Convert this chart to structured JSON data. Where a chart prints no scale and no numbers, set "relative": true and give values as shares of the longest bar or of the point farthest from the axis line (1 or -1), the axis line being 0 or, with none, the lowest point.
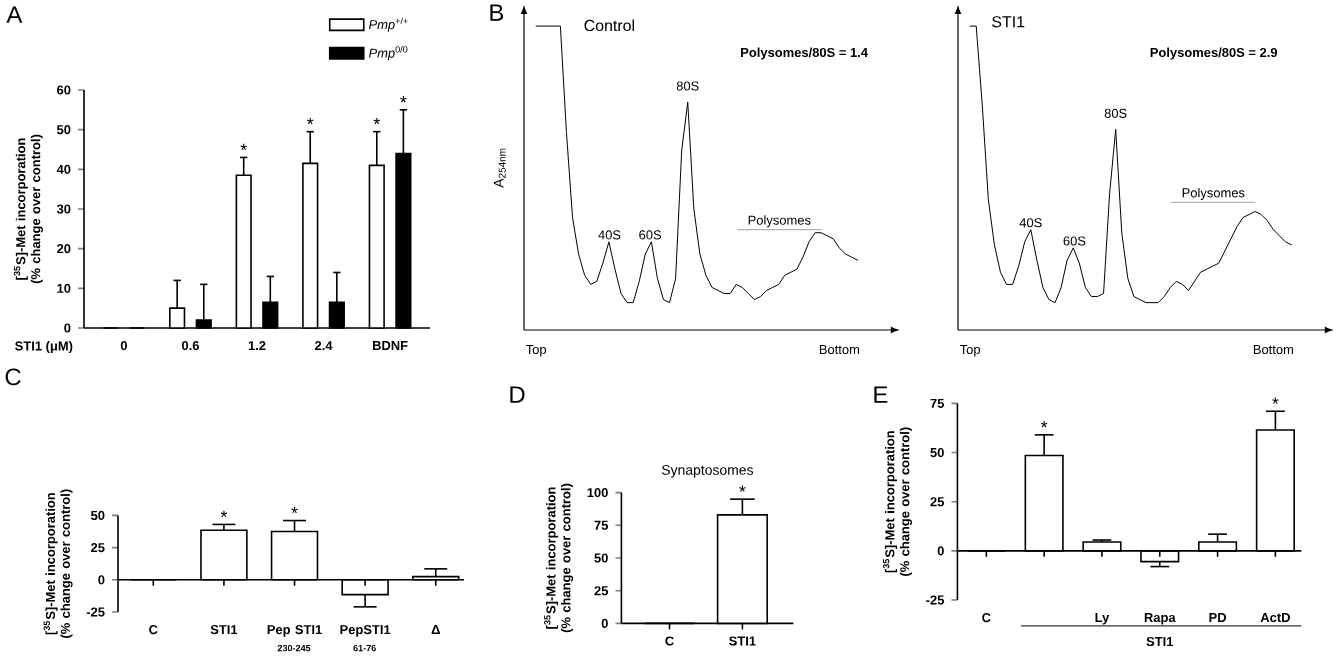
{
  "chart_data": [
    {
      "type": "bar",
      "annotations": [
        "A",
        {
          "text": "*",
          "x": "1.2",
          "y": 43
        },
        {
          "text": "*",
          "x": "2.4",
          "y": 49.5
        },
        {
          "text": "*",
          "x": "BDNF",
          "y": 49.5
        },
        {
          "text": "*",
          "x": "BDNF",
          "y": 55
        }
      ],
      "xlabel": "STI1 (μM)",
      "ylabel": "[$^{35}$S]-Met incorporation (% change over control)",
      "categories": [
        "0",
        "0.6",
        "1.2",
        "2.4",
        "BDNF"
      ],
      "series": [
        {
          "name": "*Pmp*$^{+/+}$",
          "color": "#ffffff",
          "values": [
            0,
            5,
            38.5,
            41.5,
            41
          ],
          "errors": [
            null,
            [
              5,
              12
            ],
            [
              38.5,
              43
            ],
            [
              41.5,
              49.5
            ],
            [
              41,
              49.5
            ]
          ]
        },
        {
          "name": "*Pmp*$^{0/0}$",
          "color": "#000000",
          "values": [
            0,
            2,
            6.5,
            6.5,
            44
          ],
          "errors": [
            null,
            [
              2,
              11
            ],
            [
              6.5,
              13
            ],
            [
              6.5,
              14
            ],
            [
              44,
              55
            ]
          ]
        }
      ],
      "ylim": [
        0,
        60
      ],
      "yticks": [
        0,
        10,
        20,
        30,
        40,
        50,
        60
      ],
      "legend": "top right"
    },
    {
      "type": "line",
      "relative": true,
      "title": "Control",
      "ylabel": "A$_{254nm}$",
      "annotations": [
        "B",
        "Polysomes/80S = 1.4",
        "40S",
        "60S",
        "80S",
        "Polysomes",
        "Top",
        "Bottom"
      ],
      "categories": [
        null,
        null,
        null,
        null,
        null,
        null,
        null,
        null,
        null,
        null,
        null,
        null,
        null,
        null,
        null,
        null,
        null,
        null,
        null,
        null,
        null,
        null,
        null,
        null,
        null,
        null,
        null,
        null,
        null,
        null,
        null,
        null,
        null,
        null,
        null,
        null,
        null,
        null,
        null,
        null,
        null,
        null,
        null,
        null,
        null,
        null,
        null,
        null,
        null,
        null,
        null,
        null,
        null,
        null
      ],
      "series": [
        {
          "color": "#000000",
          "values": [
            1.0,
            1.0,
            1.0,
            1.0,
            1.0,
            0.65,
            0.37,
            0.25,
            0.18,
            0.15,
            0.16,
            0.22,
            0.29,
            0.2,
            0.12,
            0.09,
            0.09,
            0.16,
            0.25,
            0.29,
            0.17,
            0.1,
            0.09,
            0.17,
            0.59,
            0.75,
            0.4,
            0.25,
            0.18,
            0.14,
            0.13,
            0.12,
            0.12,
            0.15,
            0.14,
            0.12,
            0.1,
            0.11,
            0.13,
            0.14,
            0.15,
            0.18,
            0.19,
            0.2,
            0.24,
            0.29,
            0.32,
            0.32,
            0.31,
            0.3,
            0.27,
            0.25,
            0.24,
            0.23
          ]
        }
      ]
    },
    {
      "type": "line",
      "relative": true,
      "title": "STI1",
      "annotations": [
        "Polysomes/80S = 2.9",
        "40S",
        "60S",
        "80S",
        "Polysomes",
        "Top",
        "Bottom"
      ],
      "categories": [
        null,
        null,
        null,
        null,
        null,
        null,
        null,
        null,
        null,
        null,
        null,
        null,
        null,
        null,
        null,
        null,
        null,
        null,
        null,
        null,
        null,
        null,
        null,
        null,
        null,
        null,
        null,
        null,
        null,
        null,
        null,
        null,
        null,
        null,
        null,
        null,
        null,
        null,
        null,
        null,
        null,
        null,
        null,
        null,
        null,
        null,
        null,
        null,
        null,
        null,
        null,
        null,
        null,
        null
      ],
      "series": [
        {
          "color": "#000000",
          "values": [
            1.0,
            1.0,
            0.74,
            0.43,
            0.28,
            0.19,
            0.15,
            0.15,
            0.21,
            0.29,
            0.33,
            0.23,
            0.14,
            0.1,
            0.09,
            0.14,
            0.23,
            0.27,
            0.22,
            0.14,
            0.11,
            0.11,
            0.12,
            0.45,
            0.66,
            0.32,
            0.17,
            0.11,
            0.1,
            0.09,
            0.09,
            0.09,
            0.11,
            0.14,
            0.16,
            0.15,
            0.13,
            0.16,
            0.19,
            0.2,
            0.21,
            0.22,
            0.26,
            0.3,
            0.34,
            0.37,
            0.38,
            0.39,
            0.38,
            0.36,
            0.33,
            0.31,
            0.29,
            0.28
          ]
        }
      ]
    },
    {
      "type": "bar",
      "annotations": [
        "C",
        {
          "text": "*",
          "x": "STI1",
          "y": 43
        },
        {
          "text": "*",
          "x": "Pep STI1 $_{230-245}$",
          "y": 46
        }
      ],
      "ylabel": "[$^{35}$S]-Met incorporation (% change over control)",
      "categories": [
        "C",
        "STI1",
        "Pep STI1 $_{230-245}$",
        "PepSTI1 $_{61-76}$",
        "Δ"
      ],
      "series": [
        {
          "color": "#ffffff",
          "values": [
            0,
            38.5,
            37.5,
            -11.5,
            2.5
          ],
          "errors": [
            null,
            [
              38.5,
              43
            ],
            [
              37.5,
              46
            ],
            [
              -21,
              -11.5
            ],
            [
              2.5,
              8.5
            ]
          ]
        }
      ],
      "ylim": [
        -25,
        50
      ],
      "yticks": [
        -25,
        0,
        25,
        50
      ]
    },
    {
      "type": "bar",
      "title": "Synaptosomes",
      "annotations": [
        "D",
        {
          "text": "*",
          "x": "STI1",
          "y": 95
        }
      ],
      "ylabel": "[$^{35}$S]-Met incorporation (% change over control)",
      "categories": [
        "C",
        "STI1"
      ],
      "series": [
        {
          "color": "#ffffff",
          "values": [
            0,
            83
          ],
          "errors": [
            null,
            [
              83,
              95
            ]
          ]
        }
      ],
      "ylim": [
        0,
        100
      ],
      "yticks": [
        0,
        25,
        50,
        75,
        100
      ]
    },
    {
      "type": "bar",
      "annotations": [
        "E",
        "STI1",
        "*",
        {
          "text": "*",
          "x": "ActD",
          "y": 71
        }
      ],
      "ylabel": "[$^{35}$S]-Met incorporation (% change over control)",
      "categories": [
        "C",
        null,
        "Ly",
        "Rapa",
        "PD",
        "ActD"
      ],
      "series": [
        {
          "color": "#ffffff",
          "values": [
            0,
            48.5,
            4.5,
            -5.5,
            4.5,
            61.5
          ],
          "errors": [
            null,
            [
              48.5,
              59
            ],
            [
              4.5,
              5.5
            ],
            [
              -8,
              -5.5
            ],
            [
              4.5,
              8.5
            ],
            [
              61.5,
              71
            ]
          ]
        }
      ],
      "ylim": [
        -25,
        75
      ],
      "yticks": [
        -25,
        0,
        25,
        50,
        75
      ]
    }
  ]
}
